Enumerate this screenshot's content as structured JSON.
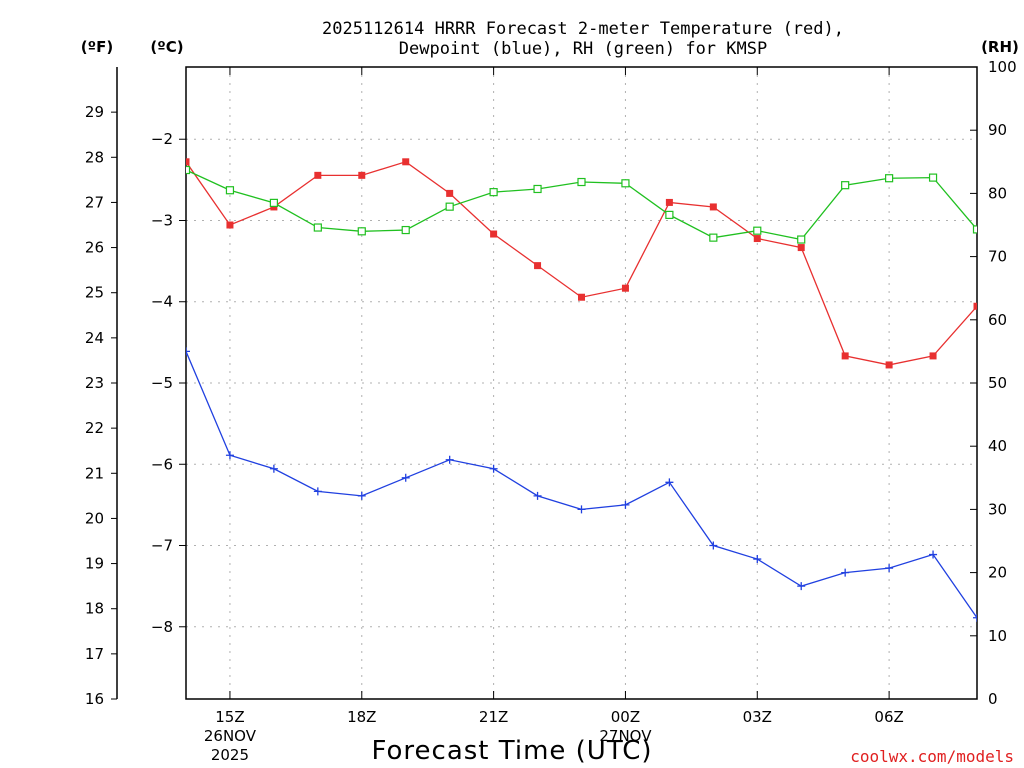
{
  "chart_data": {
    "type": "line",
    "title_lines": [
      "2025112614 HRRR Forecast 2-meter Temperature (red),",
      "Dewpoint (blue), RH (green) for KMSP"
    ],
    "xlabel": "Forecast Time (UTC)",
    "credit": "coolwx.com/models",
    "left_axis_f": {
      "unit": "(ºF)",
      "range": [
        16,
        30
      ],
      "ticks": [
        16,
        17,
        18,
        19,
        20,
        21,
        22,
        23,
        24,
        25,
        26,
        27,
        28,
        29
      ]
    },
    "left_axis_c": {
      "unit": "(ºC)",
      "ticks": [
        -2,
        -3,
        -4,
        -5,
        -6,
        -7,
        -8
      ]
    },
    "right_axis_rh": {
      "unit": "(RH)",
      "range": [
        0,
        100
      ],
      "ticks": [
        0,
        10,
        20,
        30,
        40,
        50,
        60,
        70,
        80,
        90,
        100
      ]
    },
    "x_hours": [
      14,
      15,
      16,
      17,
      18,
      19,
      20,
      21,
      22,
      23,
      24,
      25,
      26,
      27,
      28,
      29,
      30,
      31,
      32
    ],
    "x_range": [
      14,
      32
    ],
    "x_ticks": [
      {
        "hour": 15,
        "lines": [
          "15Z",
          "26NOV",
          "2025"
        ]
      },
      {
        "hour": 18,
        "lines": [
          "18Z"
        ]
      },
      {
        "hour": 21,
        "lines": [
          "21Z"
        ]
      },
      {
        "hour": 24,
        "lines": [
          "00Z",
          "27NOV"
        ]
      },
      {
        "hour": 27,
        "lines": [
          "03Z"
        ]
      },
      {
        "hour": 30,
        "lines": [
          "06Z"
        ]
      }
    ],
    "series": [
      {
        "name": "2-meter Temperature",
        "unit": "F",
        "color": "#e83030",
        "marker": "filled-square",
        "values": [
          27.9,
          26.5,
          26.9,
          27.6,
          27.6,
          27.9,
          27.2,
          26.3,
          25.6,
          24.9,
          25.1,
          27.0,
          26.9,
          26.2,
          26.0,
          23.6,
          23.4,
          23.6,
          24.7
        ]
      },
      {
        "name": "Dewpoint",
        "unit": "F",
        "color": "#2040e0",
        "marker": "plus",
        "values": [
          23.7,
          21.4,
          21.1,
          20.6,
          20.5,
          20.9,
          21.3,
          21.1,
          20.5,
          20.2,
          20.3,
          20.8,
          19.4,
          19.1,
          18.5,
          18.8,
          18.9,
          19.2,
          17.8
        ]
      },
      {
        "name": "Relative Humidity",
        "unit": "%",
        "color": "#20c020",
        "marker": "open-square",
        "values": [
          83.7,
          80.5,
          78.5,
          74.6,
          74.0,
          74.2,
          77.9,
          80.2,
          80.7,
          81.8,
          81.6,
          76.6,
          73.0,
          74.1,
          72.7,
          81.3,
          82.4,
          82.5,
          74.3
        ]
      }
    ]
  }
}
